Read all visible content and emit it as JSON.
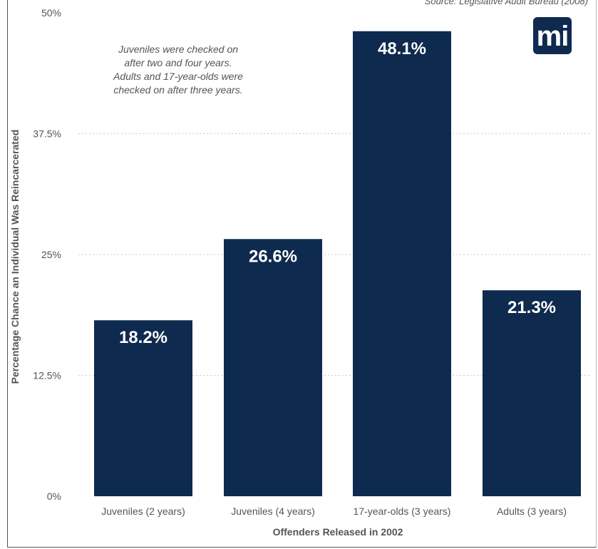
{
  "source_text": "Source: Legislative Audit Bureau (2008)",
  "logo_text": "mi",
  "note": {
    "lines": [
      "Juveniles were checked on",
      "after two and four years.",
      "Adults and 17-year-olds were",
      "checked on after three years."
    ]
  },
  "colors": {
    "bar": "#0e2a4f",
    "grid": "#cccccc",
    "text": "#555555"
  },
  "chart_data": {
    "type": "bar",
    "categories": [
      "Juveniles (2 years)",
      "Juveniles (4 years)",
      "17-year-olds (3 years)",
      "Adults (3 years)"
    ],
    "values": [
      18.2,
      26.6,
      48.1,
      21.3
    ],
    "value_labels": [
      "18.2%",
      "26.6%",
      "48.1%",
      "21.3%"
    ],
    "xlabel": "Offenders Released in 2002",
    "ylabel": "Percentage Chance an Individual Was Reincarcerated",
    "ylim": [
      0,
      50
    ],
    "yticks": [
      0,
      12.5,
      25,
      37.5,
      50
    ],
    "ytick_labels": [
      "0%",
      "12.5%",
      "25%",
      "37.5%",
      "50%"
    ],
    "grid": true
  }
}
